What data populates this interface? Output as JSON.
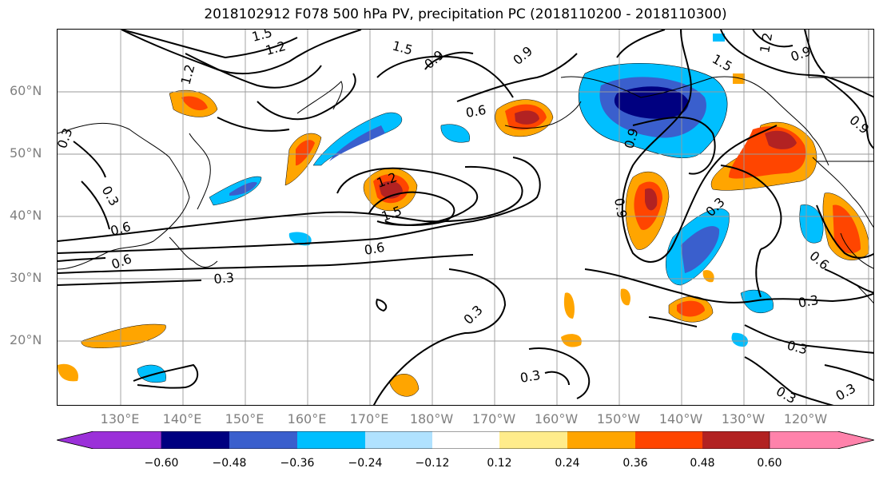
{
  "title": "2018102912 F078 500 hPa PV, precipitation PC (2018110200 - 2018110300)",
  "lat_labels": [
    "60°N",
    "50°N",
    "40°N",
    "30°N",
    "20°N"
  ],
  "lon_labels": [
    "130°E",
    "140°E",
    "150°E",
    "160°E",
    "170°E",
    "180°W",
    "170°W",
    "160°W",
    "150°W",
    "140°W",
    "130°W",
    "120°W"
  ],
  "colorbar": {
    "ticks": [
      "−0.60",
      "−0.48",
      "−0.36",
      "−0.24",
      "−0.12",
      "0.12",
      "0.24",
      "0.36",
      "0.48",
      "0.60"
    ],
    "colors": [
      "#9b30d9",
      "#000080",
      "#3a5fcd",
      "#00bfff",
      "#b0e2ff",
      "#ffffff",
      "#ffec8b",
      "#ffa500",
      "#ff4500",
      "#b22222",
      "#ff82ab"
    ]
  },
  "contour_labels": [
    "1.5",
    "1.2",
    "1.5",
    "0.9",
    "0.9",
    "1.2",
    "0.9",
    "1.5",
    "1.2",
    "0.3",
    "0.6",
    "0.9",
    "0.9",
    "1.2",
    "1.5",
    "0.3",
    "0.6",
    "0.6",
    "0.9",
    "0.6",
    "0.3",
    "0.3",
    "0.3",
    "0.3",
    "0.3",
    "0.3",
    "0.3",
    "0.3",
    "0.6"
  ]
}
